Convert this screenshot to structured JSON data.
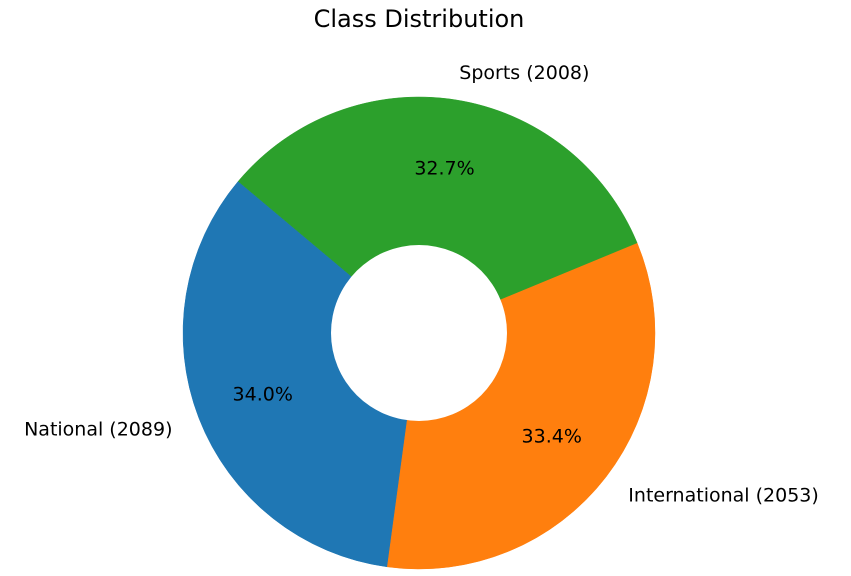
{
  "chart_data": {
    "type": "pie",
    "variant": "donut",
    "title": "Class Distribution",
    "categories": [
      "National",
      "International",
      "Sports"
    ],
    "values": [
      2089,
      2053,
      2008
    ],
    "labels": [
      "National (2089)",
      "International (2053)",
      "Sports (2008)"
    ],
    "percent_labels": [
      "34.0%",
      "33.4%",
      "32.7%"
    ],
    "colors": [
      "#1f77b4",
      "#ff7f0e",
      "#2ca02c"
    ],
    "start_angle_deg": 140,
    "direction": "counterclockwise",
    "legend": "none"
  }
}
